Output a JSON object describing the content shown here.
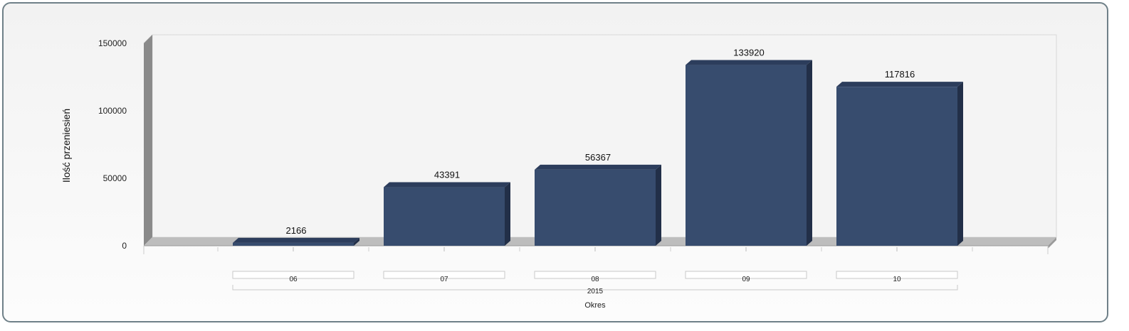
{
  "chart_data": {
    "type": "bar",
    "categories": [
      "06",
      "07",
      "08",
      "09",
      "10"
    ],
    "group_label": "2015",
    "values": [
      2166,
      43391,
      56367,
      133920,
      117816
    ],
    "ylabel": "Ilość przeniesień",
    "xlabel": "Okres",
    "ylim": [
      0,
      150000
    ],
    "yticks": [
      0,
      50000,
      100000,
      150000
    ],
    "grid": true,
    "bar_color": "#374c6e"
  }
}
